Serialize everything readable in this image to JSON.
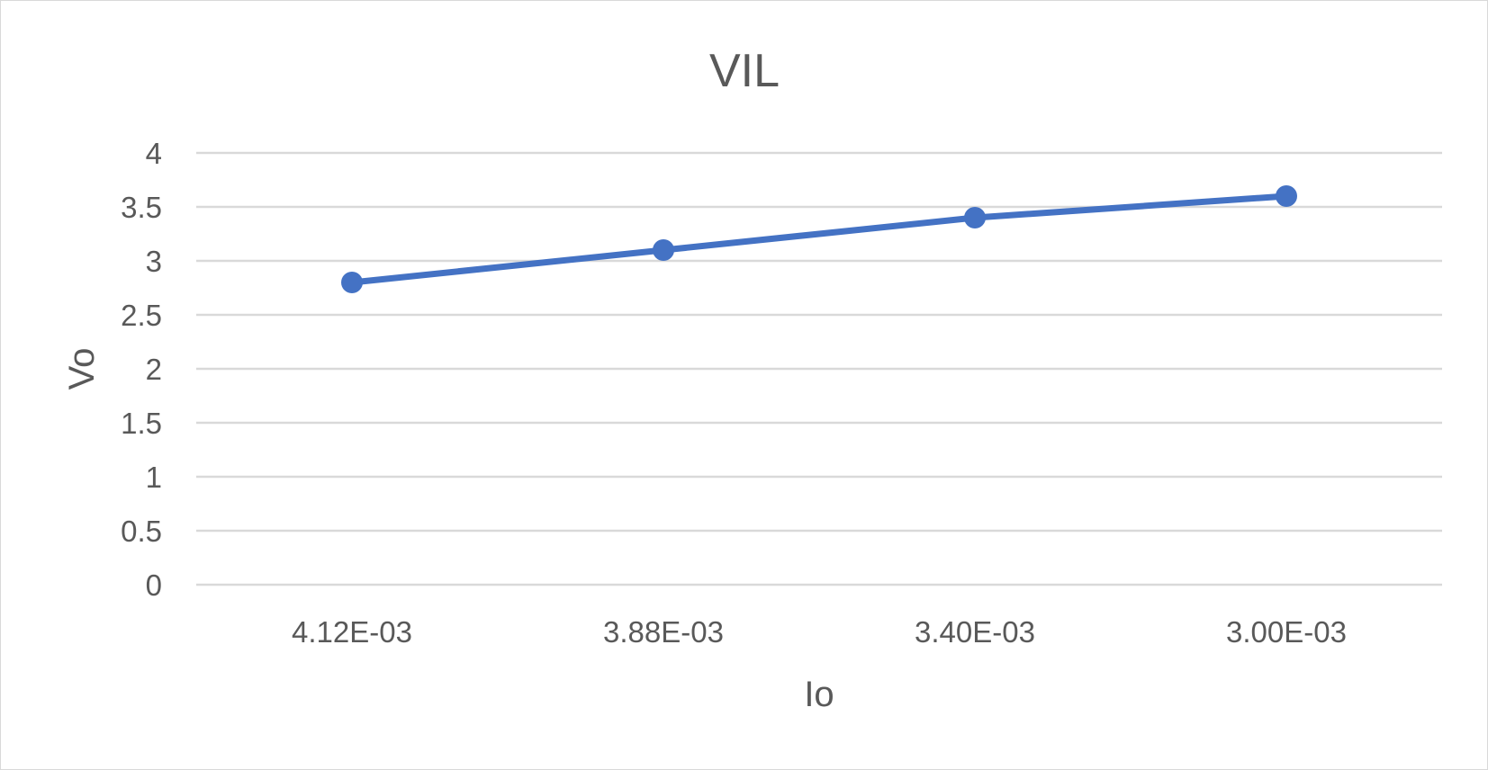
{
  "chart_data": {
    "type": "line",
    "title": "VIL",
    "xlabel": "Io",
    "ylabel": "Vo",
    "categories": [
      "4.12E-03",
      "3.88E-03",
      "3.40E-03",
      "3.00E-03"
    ],
    "series": [
      {
        "values": [
          2.8,
          3.1,
          3.4,
          3.6
        ]
      }
    ],
    "ylim": [
      0,
      4
    ],
    "yticks": [
      "0",
      "0.5",
      "1",
      "1.5",
      "2",
      "2.5",
      "3",
      "3.5",
      "4"
    ],
    "grid": true,
    "legend": "none",
    "colors": {
      "series": "#4472c4",
      "grid": "#d9d9d9",
      "text": "#595959"
    }
  }
}
